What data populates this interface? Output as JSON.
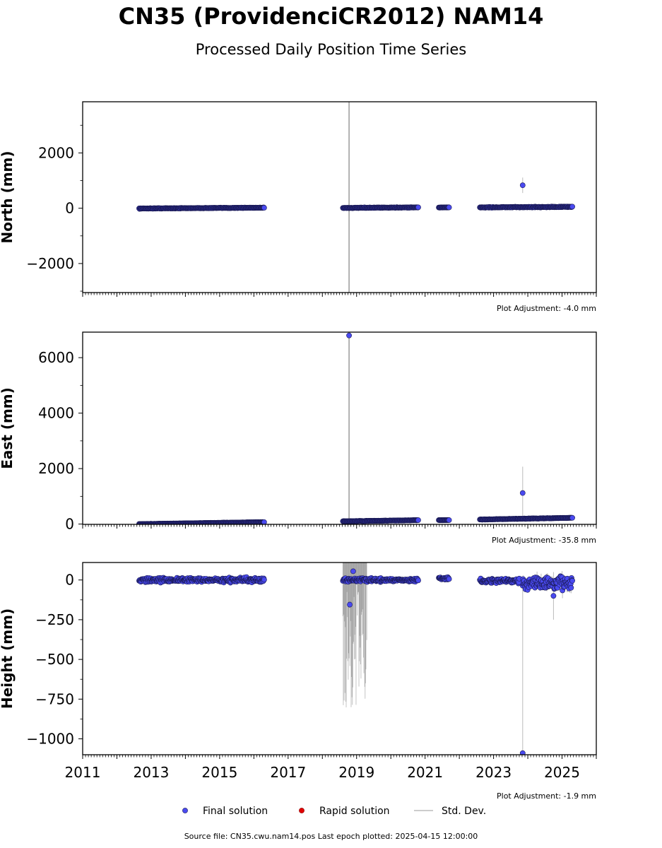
{
  "title": "CN35 (ProvidenciCR2012) NAM14",
  "subtitle": "Processed Daily Position Time Series",
  "footer": "Source file: CN35.cwu.nam14.pos  Last epoch plotted: 2025-04-15 12:00:00",
  "colors": {
    "final": "#4a4af0",
    "final_edge": "#1a1a55",
    "rapid": "#e00000",
    "stddev": "#bbbbbb"
  },
  "legend": [
    {
      "label": "Final solution",
      "type": "final"
    },
    {
      "label": "Rapid solution",
      "type": "rapid"
    },
    {
      "label": "Std. Dev.",
      "type": "stddev"
    }
  ],
  "chart_data": [
    {
      "type": "scatter",
      "ylabel": "North (mm)",
      "adjustment": "Plot Adjustment: -4.0 mm",
      "xlim": [
        2011.0,
        2026.0
      ],
      "ylim": [
        -3050,
        3850
      ],
      "yticks": [
        2000,
        0,
        -2000
      ],
      "ytick_labels": [
        "2000",
        "0",
        "−2000"
      ],
      "show_xtick_labels": false,
      "series": [
        {
          "segments": [
            {
              "x": [
                2012.65,
                2016.3
              ],
              "y": [
                -10,
                20
              ],
              "noise": 15,
              "sd": 0
            },
            {
              "x": [
                2018.6,
                2020.8
              ],
              "y": [
                10,
                30
              ],
              "noise": 15,
              "sd": 0
            },
            {
              "x": [
                2021.4,
                2021.7
              ],
              "y": [
                25,
                30
              ],
              "noise": 8,
              "sd": 0
            },
            {
              "x": [
                2022.6,
                2025.3
              ],
              "y": [
                30,
                50
              ],
              "noise": 20,
              "sd": 0
            }
          ],
          "outliers": [
            {
              "x": 2023.85,
              "y": 830,
              "sd": 280
            }
          ]
        }
      ],
      "stddev_bars": [
        {
          "x": 2018.78,
          "y": 0,
          "sd": 3900
        }
      ]
    },
    {
      "type": "scatter",
      "ylabel": "East (mm)",
      "adjustment": "Plot Adjustment: -35.8 mm",
      "xlim": [
        2011.0,
        2026.0
      ],
      "ylim": [
        -10,
        6920
      ],
      "yticks": [
        6000,
        4000,
        2000,
        0
      ],
      "ytick_labels": [
        "6000",
        "4000",
        "2000",
        "0"
      ],
      "show_xtick_labels": false,
      "series": [
        {
          "segments": [
            {
              "x": [
                2012.65,
                2016.3
              ],
              "y": [
                0,
                70
              ],
              "noise": 8,
              "sd": 0
            },
            {
              "x": [
                2018.6,
                2020.8
              ],
              "y": [
                100,
                140
              ],
              "noise": 10,
              "sd": 0
            },
            {
              "x": [
                2021.4,
                2021.7
              ],
              "y": [
                140,
                145
              ],
              "noise": 6,
              "sd": 0
            },
            {
              "x": [
                2022.6,
                2025.3
              ],
              "y": [
                165,
                225
              ],
              "noise": 12,
              "sd": 0
            }
          ],
          "outliers": [
            {
              "x": 2018.78,
              "y": 6800,
              "sd": 0
            },
            {
              "x": 2023.85,
              "y": 1120,
              "sd": 950
            }
          ]
        }
      ],
      "stddev_bars": [
        {
          "x": 2018.78,
          "y": 3400,
          "sd": 3500
        }
      ]
    },
    {
      "type": "scatter",
      "ylabel": "Height (mm)",
      "adjustment": "Plot Adjustment: -1.9 mm",
      "xlim": [
        2011.0,
        2026.0
      ],
      "ylim": [
        -1100,
        110
      ],
      "yticks": [
        0,
        -250,
        -500,
        -750,
        -1000
      ],
      "ytick_labels": [
        "0",
        "−250",
        "−500",
        "−750",
        "−1000"
      ],
      "show_xtick_labels": true,
      "xticks": [
        2011,
        2013,
        2015,
        2017,
        2019,
        2021,
        2023,
        2025
      ],
      "xtick_labels": [
        "2011",
        "2013",
        "2015",
        "2017",
        "2019",
        "2021",
        "2023",
        "2025"
      ],
      "series": [
        {
          "segments": [
            {
              "x": [
                2012.65,
                2016.3
              ],
              "y": [
                0,
                0
              ],
              "noise": 20,
              "sd": 0
            },
            {
              "x": [
                2018.6,
                2020.8
              ],
              "y": [
                0,
                0
              ],
              "noise": 15,
              "sd": 0
            },
            {
              "x": [
                2021.4,
                2021.7
              ],
              "y": [
                10,
                10
              ],
              "noise": 10,
              "sd": 0
            },
            {
              "x": [
                2022.6,
                2023.75
              ],
              "y": [
                -5,
                -5
              ],
              "noise": 20,
              "sd": 0
            },
            {
              "x": [
                2023.85,
                2025.3
              ],
              "y": [
                -20,
                -20
              ],
              "noise": 60,
              "sd": 60
            }
          ],
          "outliers": [
            {
              "x": 2018.8,
              "y": -155,
              "sd": 0
            },
            {
              "x": 2018.9,
              "y": 55,
              "sd": 0
            },
            {
              "x": 2023.85,
              "y": -1090,
              "sd": 1100
            },
            {
              "x": 2024.75,
              "y": -100,
              "sd": 150
            }
          ]
        }
      ],
      "stddev_bands": [
        {
          "x": [
            2018.6,
            2019.3
          ],
          "top": 110,
          "bottom": -820
        }
      ]
    }
  ]
}
